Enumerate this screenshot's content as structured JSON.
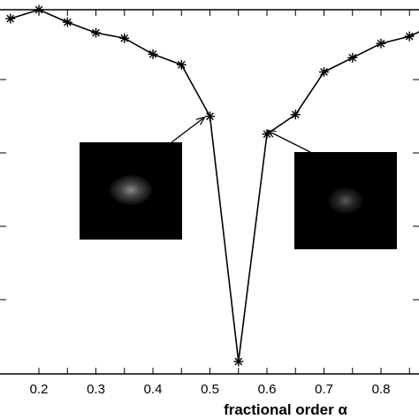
{
  "chart_data": {
    "type": "line",
    "title": "",
    "xlabel": "fractional order α",
    "ylabel": "",
    "xlim": [
      0.145,
      0.87
    ],
    "ylim": [
      0,
      1
    ],
    "x_ticks": [
      "0.2",
      "0.3",
      "0.4",
      "0.5",
      "0.6",
      "0.7",
      "0.8"
    ],
    "x_tick_values": [
      0.2,
      0.25,
      0.3,
      0.35,
      0.4,
      0.45,
      0.5,
      0.55,
      0.6,
      0.65,
      0.7,
      0.75,
      0.8,
      0.85
    ],
    "y_tick_values": [
      0.0,
      0.2,
      0.4,
      0.6,
      0.8,
      1.0
    ],
    "series": [
      {
        "x": [
          0.15,
          0.2,
          0.25,
          0.3,
          0.35,
          0.4,
          0.45,
          0.5,
          0.55,
          0.6,
          0.65,
          0.7,
          0.75,
          0.8,
          0.85,
          0.87
        ],
        "y": [
          0.975,
          1.0,
          0.965,
          0.935,
          0.92,
          0.875,
          0.845,
          0.7,
          0.01,
          0.65,
          0.705,
          0.825,
          0.865,
          0.905,
          0.925,
          0.94
        ],
        "marker": "asterisk",
        "color": "#000000"
      }
    ],
    "annotations": [
      {
        "target_x": 0.5,
        "target_y": 0.7,
        "type": "inset-image",
        "side": "left"
      },
      {
        "target_x": 0.6,
        "target_y": 0.65,
        "type": "inset-image",
        "side": "right"
      }
    ],
    "grid": false
  }
}
